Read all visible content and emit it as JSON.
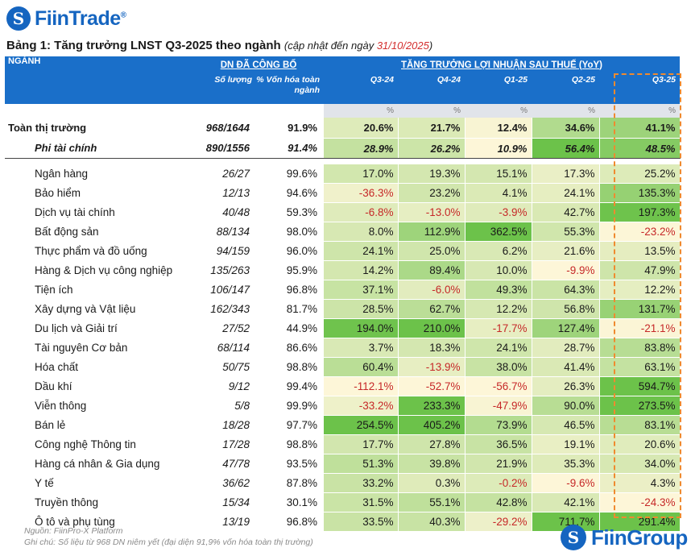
{
  "brand": {
    "logo_mark": "S",
    "logo_text": "FiinTrade",
    "logo_reg": "®"
  },
  "title": {
    "main": "Bảng 1: Tăng trưởng LNST Q3-2025 theo ngành",
    "sub_prefix": "(cập nhật đến ngày ",
    "date": "31/10/2025",
    "sub_suffix": ")"
  },
  "header": {
    "sector": "NGÀNH",
    "disclosed": "DN ĐÃ CÔNG BỐ",
    "growth": "TĂNG TRƯỞNG LỢI NHUẬN SAU THUẾ (YoY)",
    "count": "Số lượng",
    "cap": "% Vốn hóa toàn ngành",
    "periods": [
      "Q3-24",
      "Q4-24",
      "Q1-25",
      "Q2-25",
      "Q3-25"
    ],
    "unit": "%"
  },
  "colors": {
    "header_bg": "#1a6fc9",
    "negative": "#c62828",
    "highlight": "#ef8a2f",
    "max_green": "#6cc24a",
    "min_yellow": "#fdf6d8"
  },
  "summary_rows": [
    {
      "name": "Toàn thị trường",
      "count": "968/1644",
      "cap": "91.9%",
      "values": [
        "20.6%",
        "21.7%",
        "12.4%",
        "34.6%",
        "41.1%"
      ]
    },
    {
      "name": "Phi tài chính",
      "count": "890/1556",
      "cap": "91.4%",
      "values": [
        "28.9%",
        "26.2%",
        "10.9%",
        "56.4%",
        "48.5%"
      ]
    }
  ],
  "rows": [
    {
      "name": "Ngân hàng",
      "count": "26/27",
      "cap": "99.6%",
      "values": [
        "17.0%",
        "19.3%",
        "15.1%",
        "17.3%",
        "25.2%"
      ]
    },
    {
      "name": "Bảo hiểm",
      "count": "12/13",
      "cap": "94.6%",
      "values": [
        "-36.3%",
        "23.2%",
        "4.1%",
        "24.1%",
        "135.3%"
      ]
    },
    {
      "name": "Dịch vụ tài chính",
      "count": "40/48",
      "cap": "59.3%",
      "values": [
        "-6.8%",
        "-13.0%",
        "-3.9%",
        "42.7%",
        "197.3%"
      ]
    },
    {
      "name": "Bất động sản",
      "count": "88/134",
      "cap": "98.0%",
      "values": [
        "8.0%",
        "112.9%",
        "362.5%",
        "55.3%",
        "-23.2%"
      ]
    },
    {
      "name": "Thực phẩm và đồ uống",
      "count": "94/159",
      "cap": "96.0%",
      "values": [
        "24.1%",
        "25.0%",
        "6.2%",
        "21.6%",
        "13.5%"
      ]
    },
    {
      "name": "Hàng & Dịch vụ công nghiệp",
      "count": "135/263",
      "cap": "95.9%",
      "values": [
        "14.2%",
        "89.4%",
        "10.0%",
        "-9.9%",
        "47.9%"
      ]
    },
    {
      "name": "Tiện ích",
      "count": "106/147",
      "cap": "96.8%",
      "values": [
        "37.1%",
        "-6.0%",
        "49.3%",
        "64.3%",
        "12.2%"
      ]
    },
    {
      "name": "Xây dựng và Vật liệu",
      "count": "162/343",
      "cap": "81.7%",
      "values": [
        "28.5%",
        "62.7%",
        "12.2%",
        "56.8%",
        "131.7%"
      ]
    },
    {
      "name": "Du lịch và Giải trí",
      "count": "27/52",
      "cap": "44.9%",
      "values": [
        "194.0%",
        "210.0%",
        "-17.7%",
        "127.4%",
        "-21.1%"
      ]
    },
    {
      "name": "Tài nguyên Cơ bản",
      "count": "68/114",
      "cap": "86.6%",
      "values": [
        "3.7%",
        "18.3%",
        "24.1%",
        "28.7%",
        "83.8%"
      ]
    },
    {
      "name": "Hóa chất",
      "count": "50/75",
      "cap": "98.8%",
      "values": [
        "60.4%",
        "-13.9%",
        "38.0%",
        "41.4%",
        "63.1%"
      ]
    },
    {
      "name": "Dầu khí",
      "count": "9/12",
      "cap": "99.4%",
      "values": [
        "-112.1%",
        "-52.7%",
        "-56.7%",
        "26.3%",
        "594.7%"
      ]
    },
    {
      "name": "Viễn thông",
      "count": "5/8",
      "cap": "99.9%",
      "values": [
        "-33.2%",
        "233.3%",
        "-47.9%",
        "90.0%",
        "273.5%"
      ]
    },
    {
      "name": "Bán lẻ",
      "count": "18/28",
      "cap": "97.7%",
      "values": [
        "254.5%",
        "405.2%",
        "73.9%",
        "46.5%",
        "83.1%"
      ]
    },
    {
      "name": "Công nghệ Thông tin",
      "count": "17/28",
      "cap": "98.8%",
      "values": [
        "17.7%",
        "27.8%",
        "36.5%",
        "19.1%",
        "20.6%"
      ]
    },
    {
      "name": "Hàng cá nhân & Gia dụng",
      "count": "47/78",
      "cap": "93.5%",
      "values": [
        "51.3%",
        "39.8%",
        "21.9%",
        "35.3%",
        "34.0%"
      ]
    },
    {
      "name": "Y tế",
      "count": "36/62",
      "cap": "87.8%",
      "values": [
        "33.2%",
        "0.3%",
        "-0.2%",
        "-9.6%",
        "4.3%"
      ]
    },
    {
      "name": "Truyền thông",
      "count": "15/34",
      "cap": "30.1%",
      "values": [
        "31.5%",
        "55.1%",
        "42.8%",
        "42.1%",
        "-24.3%"
      ]
    },
    {
      "name": "Ô tô và phụ tùng",
      "count": "13/19",
      "cap": "96.8%",
      "values": [
        "33.5%",
        "40.3%",
        "-29.2%",
        "711.7%",
        "291.4%"
      ]
    }
  ],
  "footer": {
    "source": "Nguồn: FiinPro-X Platform",
    "note": "Ghi chú: Số liệu từ 968 DN niêm yết (đại diện 91,9% vốn hóa toàn thị trường)"
  },
  "footer_brand": {
    "mark": "S",
    "text": "FiinGroup"
  }
}
